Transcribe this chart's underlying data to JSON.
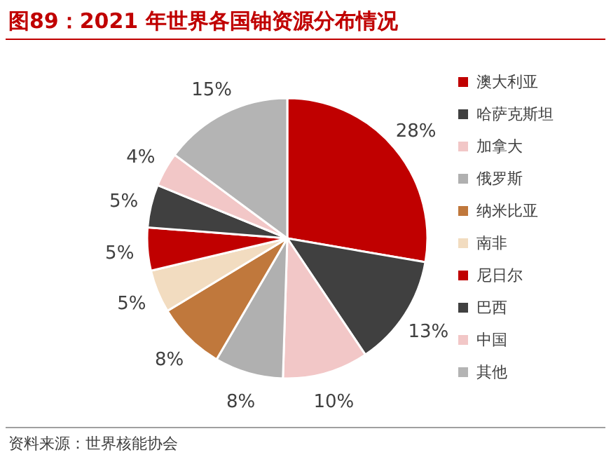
{
  "chart_data": {
    "type": "pie",
    "title": "图89：2021 年世界各国铀资源分布情况",
    "categories": [
      "澳大利亚",
      "哈萨克斯坦",
      "加拿大",
      "俄罗斯",
      "纳米比亚",
      "南非",
      "尼日尔",
      "巴西",
      "中国",
      "其他"
    ],
    "values": [
      28,
      13,
      10,
      8,
      8,
      5,
      5,
      5,
      4,
      15
    ],
    "colors": [
      "#c00000",
      "#404040",
      "#f2c7c7",
      "#b0b0b0",
      "#c0783c",
      "#f2dcc0",
      "#c00000",
      "#404040",
      "#f2c7c7",
      "#b4b4b4"
    ],
    "value_labels": [
      "28%",
      "13%",
      "10%",
      "8%",
      "8%",
      "5%",
      "5%",
      "5%",
      "4%",
      "15%"
    ],
    "legend": "right",
    "annotations": [
      "资料来源：世界核能协会"
    ]
  }
}
